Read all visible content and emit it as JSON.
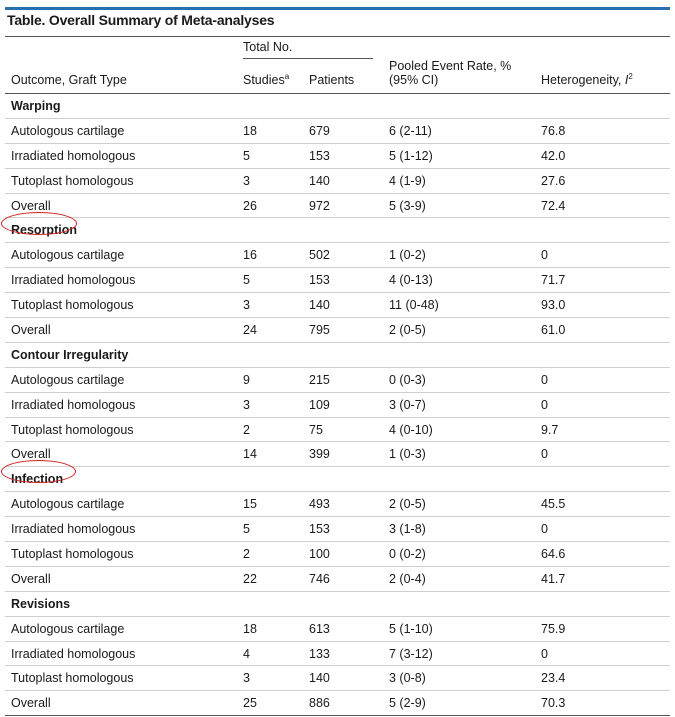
{
  "title": "Table. Overall Summary of Meta-analyses",
  "headers": {
    "group_total": "Total No.",
    "outcome": "Outcome, Graft Type",
    "studies": "Studies",
    "studies_sup": "a",
    "patients": "Patients",
    "pooled_line1": "Pooled Event Rate, %",
    "pooled_line2": "(95% CI)",
    "heterogeneity": "Heterogeneity, ",
    "heterogeneity_i": "I",
    "heterogeneity_sup": "2"
  },
  "sections": [
    {
      "name": "Warping",
      "rows": [
        [
          "Autologous cartilage",
          "18",
          "679",
          "6 (2-11)",
          "76.8"
        ],
        [
          "Irradiated homologous",
          "5",
          "153",
          "5 (1-12)",
          "42.0"
        ],
        [
          "Tutoplast homologous",
          "3",
          "140",
          "4 (1-9)",
          "27.6"
        ],
        [
          "Overall",
          "26",
          "972",
          "5 (3-9)",
          "72.4"
        ]
      ]
    },
    {
      "name": "Resorption",
      "rows": [
        [
          "Autologous cartilage",
          "16",
          "502",
          "1 (0-2)",
          "0"
        ],
        [
          "Irradiated homologous",
          "5",
          "153",
          "4 (0-13)",
          "71.7"
        ],
        [
          "Tutoplast homologous",
          "3",
          "140",
          "11 (0-48)",
          "93.0"
        ],
        [
          "Overall",
          "24",
          "795",
          "2 (0-5)",
          "61.0"
        ]
      ]
    },
    {
      "name": "Contour Irregularity",
      "rows": [
        [
          "Autologous cartilage",
          "9",
          "215",
          "0 (0-3)",
          "0"
        ],
        [
          "Irradiated homologous",
          "3",
          "109",
          "3 (0-7)",
          "0"
        ],
        [
          "Tutoplast homologous",
          "2",
          "75",
          "4 (0-10)",
          "9.7"
        ],
        [
          "Overall",
          "14",
          "399",
          "1 (0-3)",
          "0"
        ]
      ]
    },
    {
      "name": "Infection",
      "rows": [
        [
          "Autologous cartilage",
          "15",
          "493",
          "2 (0-5)",
          "45.5"
        ],
        [
          "Irradiated homologous",
          "5",
          "153",
          "3 (1-8)",
          "0"
        ],
        [
          "Tutoplast homologous",
          "2",
          "100",
          "0 (0-2)",
          "64.6"
        ],
        [
          "Overall",
          "22",
          "746",
          "2 (0-4)",
          "41.7"
        ]
      ]
    },
    {
      "name": "Revisions",
      "rows": [
        [
          "Autologous cartilage",
          "18",
          "613",
          "5 (1-10)",
          "75.9"
        ],
        [
          "Irradiated homologous",
          "4",
          "133",
          "7 (3-12)",
          "0"
        ],
        [
          "Tutoplast homologous",
          "3",
          "140",
          "3 (0-8)",
          "23.4"
        ],
        [
          "Overall",
          "25",
          "886",
          "5 (2-9)",
          "70.3"
        ]
      ]
    }
  ],
  "annotations": {
    "circle_color": "#d22222",
    "accent_color": "#2a6fb0"
  }
}
